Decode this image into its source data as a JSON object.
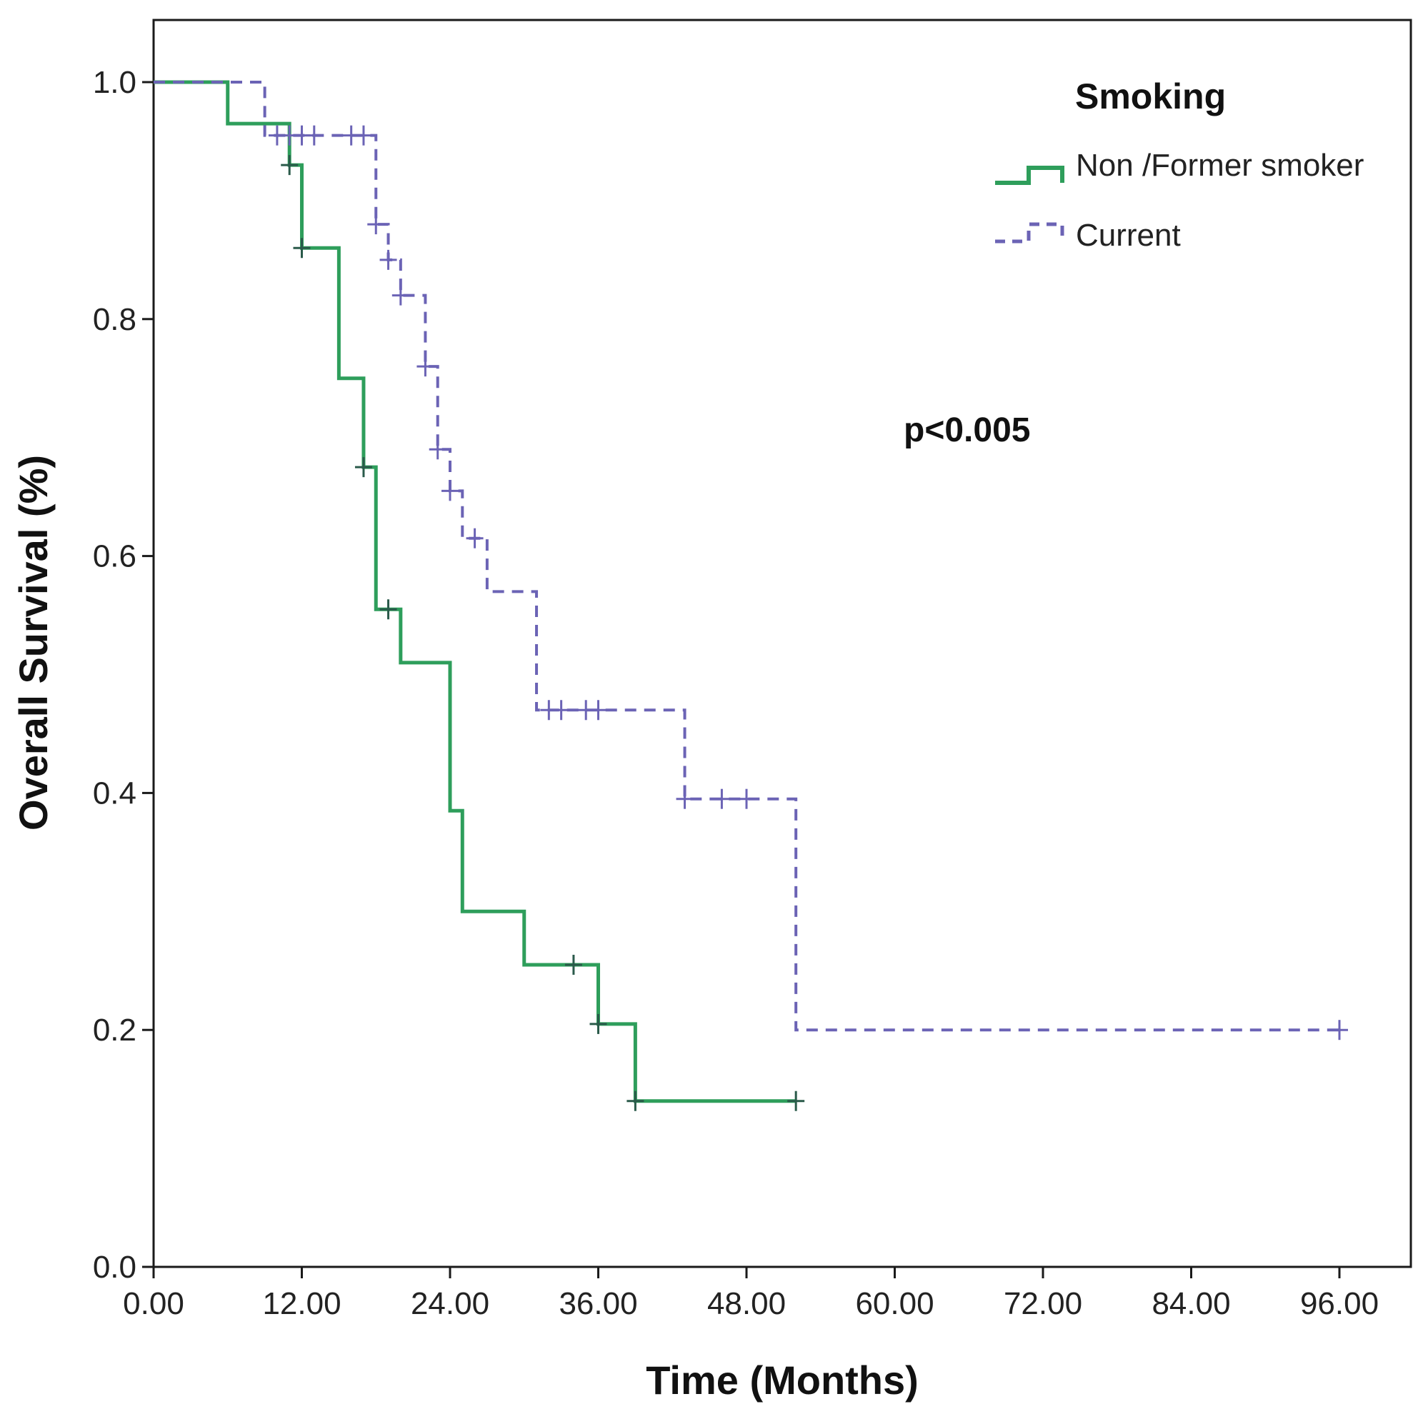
{
  "chart_data": {
    "type": "line",
    "subtype": "kaplan-meier-step",
    "title": "",
    "xlabel": "Time (Months)",
    "ylabel": "Overall Survival (%)",
    "xlim": [
      0,
      100
    ],
    "ylim": [
      0,
      1.0
    ],
    "x_ticks": [
      0,
      12,
      24,
      36,
      48,
      60,
      72,
      84,
      96
    ],
    "x_tick_labels": [
      "0.00",
      "12.00",
      "24.00",
      "36.00",
      "48.00",
      "60.00",
      "72.00",
      "84.00",
      "96.00"
    ],
    "y_ticks": [
      0,
      0.2,
      0.4,
      0.6,
      0.8,
      1.0
    ],
    "y_tick_labels": [
      "0.0",
      "0.2",
      "0.4",
      "0.6",
      "0.8",
      "1.0"
    ],
    "grid": false,
    "legend": {
      "title": "Smoking",
      "position": "top-right"
    },
    "annotation": "p<0.005",
    "series": [
      {
        "name": "Non /Former smoker",
        "color": "#2e9e5b",
        "dash": "solid",
        "steps": [
          [
            0,
            1.0
          ],
          [
            6,
            0.965
          ],
          [
            11,
            0.93
          ],
          [
            12,
            0.86
          ],
          [
            15,
            0.75
          ],
          [
            17,
            0.675
          ],
          [
            18,
            0.555
          ],
          [
            20,
            0.51
          ],
          [
            24,
            0.385
          ],
          [
            25,
            0.3
          ],
          [
            30,
            0.255
          ],
          [
            36,
            0.205
          ],
          [
            39,
            0.14
          ]
        ],
        "end_x": 52,
        "censored": [
          [
            11,
            0.93
          ],
          [
            12,
            0.86
          ],
          [
            17,
            0.675
          ],
          [
            19,
            0.555
          ],
          [
            34,
            0.255
          ],
          [
            36,
            0.205
          ],
          [
            39,
            0.14
          ],
          [
            52,
            0.14
          ]
        ]
      },
      {
        "name": "Current",
        "color": "#6b63b5",
        "dash": "dashed",
        "steps": [
          [
            0,
            1.0
          ],
          [
            9,
            0.955
          ],
          [
            18,
            0.88
          ],
          [
            19,
            0.85
          ],
          [
            20,
            0.82
          ],
          [
            22,
            0.76
          ],
          [
            23,
            0.69
          ],
          [
            24,
            0.655
          ],
          [
            25,
            0.615
          ],
          [
            27,
            0.57
          ],
          [
            31,
            0.47
          ],
          [
            43,
            0.395
          ],
          [
            52,
            0.2
          ]
        ],
        "end_x": 96,
        "censored": [
          [
            10,
            0.955
          ],
          [
            11,
            0.955
          ],
          [
            12,
            0.955
          ],
          [
            13,
            0.955
          ],
          [
            16,
            0.955
          ],
          [
            17,
            0.955
          ],
          [
            18,
            0.88
          ],
          [
            19,
            0.85
          ],
          [
            20,
            0.82
          ],
          [
            22,
            0.76
          ],
          [
            23,
            0.69
          ],
          [
            24,
            0.655
          ],
          [
            26,
            0.615
          ],
          [
            32,
            0.47
          ],
          [
            33,
            0.47
          ],
          [
            35,
            0.47
          ],
          [
            36,
            0.47
          ],
          [
            43,
            0.395
          ],
          [
            46,
            0.395
          ],
          [
            48,
            0.395
          ],
          [
            96,
            0.2
          ]
        ]
      }
    ]
  }
}
